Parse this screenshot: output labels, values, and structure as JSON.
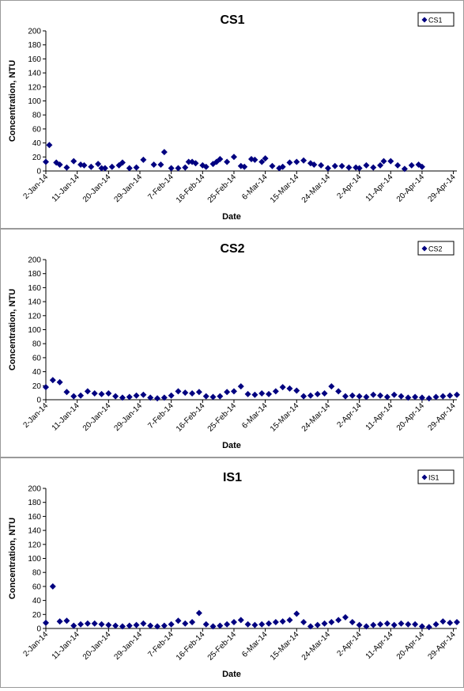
{
  "chart_data": [
    {
      "type": "scatter",
      "title": "CS1",
      "xlabel": "Date",
      "ylabel": "Concentration, NTU",
      "ylim": [
        0,
        200
      ],
      "yticks": [
        "0",
        "20",
        "40",
        "60",
        "80",
        "100",
        "120",
        "140",
        "160",
        "180",
        "200"
      ],
      "xticks": [
        "2-Jan-14",
        "11-Jan-14",
        "20-Jan-14",
        "29-Jan-14",
        "7-Feb-14",
        "16-Feb-14",
        "25-Feb-14",
        "6-Mar-14",
        "15-Mar-14",
        "24-Mar-14",
        "2-Apr-14",
        "11-Apr-14",
        "20-Apr-14",
        "29-Apr-14"
      ],
      "legend_position": "top-right",
      "grid": false,
      "marker_color": "#000080",
      "series": [
        {
          "name": "CS1",
          "x": [
            "2-Jan-14",
            "3-Jan-14",
            "5-Jan-14",
            "6-Jan-14",
            "8-Jan-14",
            "10-Jan-14",
            "12-Jan-14",
            "13-Jan-14",
            "15-Jan-14",
            "17-Jan-14",
            "18-Jan-14",
            "19-Jan-14",
            "21-Jan-14",
            "23-Jan-14",
            "24-Jan-14",
            "26-Jan-14",
            "28-Jan-14",
            "30-Jan-14",
            "2-Feb-14",
            "4-Feb-14",
            "5-Feb-14",
            "7-Feb-14",
            "9-Feb-14",
            "11-Feb-14",
            "12-Feb-14",
            "13-Feb-14",
            "14-Feb-14",
            "16-Feb-14",
            "17-Feb-14",
            "19-Feb-14",
            "20-Feb-14",
            "21-Feb-14",
            "23-Feb-14",
            "25-Feb-14",
            "27-Feb-14",
            "28-Feb-14",
            "2-Mar-14",
            "3-Mar-14",
            "5-Mar-14",
            "6-Mar-14",
            "8-Mar-14",
            "10-Mar-14",
            "11-Mar-14",
            "13-Mar-14",
            "15-Mar-14",
            "17-Mar-14",
            "19-Mar-14",
            "20-Mar-14",
            "22-Mar-14",
            "24-Mar-14",
            "26-Mar-14",
            "28-Mar-14",
            "30-Mar-14",
            "1-Apr-14",
            "2-Apr-14",
            "4-Apr-14",
            "6-Apr-14",
            "8-Apr-14",
            "9-Apr-14",
            "11-Apr-14",
            "13-Apr-14",
            "15-Apr-14",
            "17-Apr-14",
            "19-Apr-14",
            "20-Apr-14"
          ],
          "y": [
            13,
            37,
            12,
            9,
            5,
            14,
            9,
            8,
            6,
            10,
            4,
            4,
            6,
            8,
            12,
            4,
            5,
            16,
            9,
            9,
            27,
            4,
            4,
            5,
            13,
            13,
            11,
            8,
            6,
            10,
            13,
            17,
            13,
            20,
            7,
            6,
            17,
            16,
            13,
            18,
            7,
            4,
            6,
            12,
            13,
            15,
            11,
            9,
            8,
            4,
            7,
            7,
            5,
            5,
            4,
            8,
            5,
            8,
            14,
            14,
            8,
            3,
            8,
            9,
            6
          ],
          "y_note": ""
        }
      ]
    },
    {
      "type": "scatter",
      "title": "CS2",
      "xlabel": "Date",
      "ylabel": "Concentration, NTU",
      "ylim": [
        0,
        200
      ],
      "yticks": [
        "0",
        "20",
        "40",
        "60",
        "80",
        "100",
        "120",
        "140",
        "160",
        "180",
        "200"
      ],
      "xticks": [
        "2-Jan-14",
        "11-Jan-14",
        "20-Jan-14",
        "29-Jan-14",
        "7-Feb-14",
        "16-Feb-14",
        "25-Feb-14",
        "6-Mar-14",
        "15-Mar-14",
        "24-Mar-14",
        "2-Apr-14",
        "11-Apr-14",
        "20-Apr-14",
        "29-Apr-14"
      ],
      "legend_position": "top-right",
      "grid": false,
      "marker_color": "#000080",
      "series": [
        {
          "name": "CS2",
          "x": [
            "2-Jan-14",
            "4-Jan-14",
            "6-Jan-14",
            "8-Jan-14",
            "10-Jan-14",
            "12-Jan-14",
            "14-Jan-14",
            "16-Jan-14",
            "18-Jan-14",
            "20-Jan-14",
            "22-Jan-14",
            "24-Jan-14",
            "26-Jan-14",
            "28-Jan-14",
            "30-Jan-14",
            "1-Feb-14",
            "3-Feb-14",
            "5-Feb-14",
            "7-Feb-14",
            "9-Feb-14",
            "11-Feb-14",
            "13-Feb-14",
            "15-Feb-14",
            "17-Feb-14",
            "19-Feb-14",
            "21-Feb-14",
            "23-Feb-14",
            "25-Feb-14",
            "27-Feb-14",
            "1-Mar-14",
            "3-Mar-14",
            "5-Mar-14",
            "7-Mar-14",
            "9-Mar-14",
            "11-Mar-14",
            "13-Mar-14",
            "15-Mar-14",
            "17-Mar-14",
            "19-Mar-14",
            "21-Mar-14",
            "23-Mar-14",
            "25-Mar-14",
            "27-Mar-14",
            "29-Mar-14",
            "31-Mar-14",
            "2-Apr-14",
            "4-Apr-14",
            "6-Apr-14",
            "8-Apr-14",
            "10-Apr-14",
            "12-Apr-14",
            "14-Apr-14",
            "16-Apr-14",
            "18-Apr-14",
            "20-Apr-14",
            "22-Apr-14",
            "24-Apr-14",
            "26-Apr-14",
            "28-Apr-14",
            "30-Apr-14"
          ],
          "y": [
            18,
            28,
            25,
            11,
            5,
            6,
            12,
            9,
            8,
            9,
            5,
            3,
            4,
            6,
            7,
            3,
            2,
            3,
            6,
            12,
            10,
            9,
            11,
            5,
            4,
            5,
            11,
            12,
            19,
            8,
            7,
            9,
            8,
            12,
            18,
            16,
            13,
            5,
            6,
            8,
            9,
            19,
            12,
            5,
            6,
            5,
            4,
            7,
            6,
            4,
            7,
            5,
            3,
            4,
            3,
            2,
            4,
            5,
            6,
            7
          ],
          "y_note": ""
        }
      ]
    },
    {
      "type": "scatter",
      "title": "IS1",
      "xlabel": "Date",
      "ylabel": "Concentration, NTU",
      "ylim": [
        0,
        200
      ],
      "yticks": [
        "0",
        "20",
        "40",
        "60",
        "80",
        "100",
        "120",
        "140",
        "160",
        "180",
        "200"
      ],
      "xticks": [
        "2-Jan-14",
        "11-Jan-14",
        "20-Jan-14",
        "29-Jan-14",
        "7-Feb-14",
        "16-Feb-14",
        "25-Feb-14",
        "6-Mar-14",
        "15-Mar-14",
        "24-Mar-14",
        "2-Apr-14",
        "11-Apr-14",
        "20-Apr-14",
        "29-Apr-14"
      ],
      "legend_position": "top-right",
      "grid": false,
      "marker_color": "#000080",
      "series": [
        {
          "name": "IS1",
          "x": [
            "2-Jan-14",
            "4-Jan-14",
            "6-Jan-14",
            "8-Jan-14",
            "10-Jan-14",
            "12-Jan-14",
            "14-Jan-14",
            "16-Jan-14",
            "18-Jan-14",
            "20-Jan-14",
            "22-Jan-14",
            "24-Jan-14",
            "26-Jan-14",
            "28-Jan-14",
            "30-Jan-14",
            "1-Feb-14",
            "3-Feb-14",
            "5-Feb-14",
            "7-Feb-14",
            "9-Feb-14",
            "11-Feb-14",
            "13-Feb-14",
            "15-Feb-14",
            "17-Feb-14",
            "19-Feb-14",
            "21-Feb-14",
            "23-Feb-14",
            "25-Feb-14",
            "27-Feb-14",
            "1-Mar-14",
            "3-Mar-14",
            "5-Mar-14",
            "7-Mar-14",
            "9-Mar-14",
            "11-Mar-14",
            "13-Mar-14",
            "15-Mar-14",
            "17-Mar-14",
            "19-Mar-14",
            "21-Mar-14",
            "23-Mar-14",
            "25-Mar-14",
            "27-Mar-14",
            "29-Mar-14",
            "31-Mar-14",
            "2-Apr-14",
            "4-Apr-14",
            "6-Apr-14",
            "8-Apr-14",
            "10-Apr-14",
            "12-Apr-14",
            "14-Apr-14",
            "16-Apr-14",
            "18-Apr-14",
            "20-Apr-14",
            "22-Apr-14",
            "24-Apr-14",
            "26-Apr-14",
            "28-Apr-14",
            "30-Apr-14"
          ],
          "y": [
            8,
            60,
            10,
            11,
            4,
            6,
            7,
            7,
            6,
            5,
            4,
            3,
            4,
            5,
            7,
            4,
            3,
            4,
            6,
            11,
            7,
            9,
            22,
            6,
            3,
            4,
            6,
            9,
            12,
            6,
            5,
            6,
            7,
            9,
            10,
            12,
            21,
            9,
            3,
            5,
            7,
            9,
            12,
            16,
            9,
            5,
            3,
            5,
            6,
            7,
            5,
            7,
            6,
            6,
            3,
            2,
            6,
            10,
            8,
            9
          ],
          "y_note": ""
        }
      ]
    }
  ]
}
